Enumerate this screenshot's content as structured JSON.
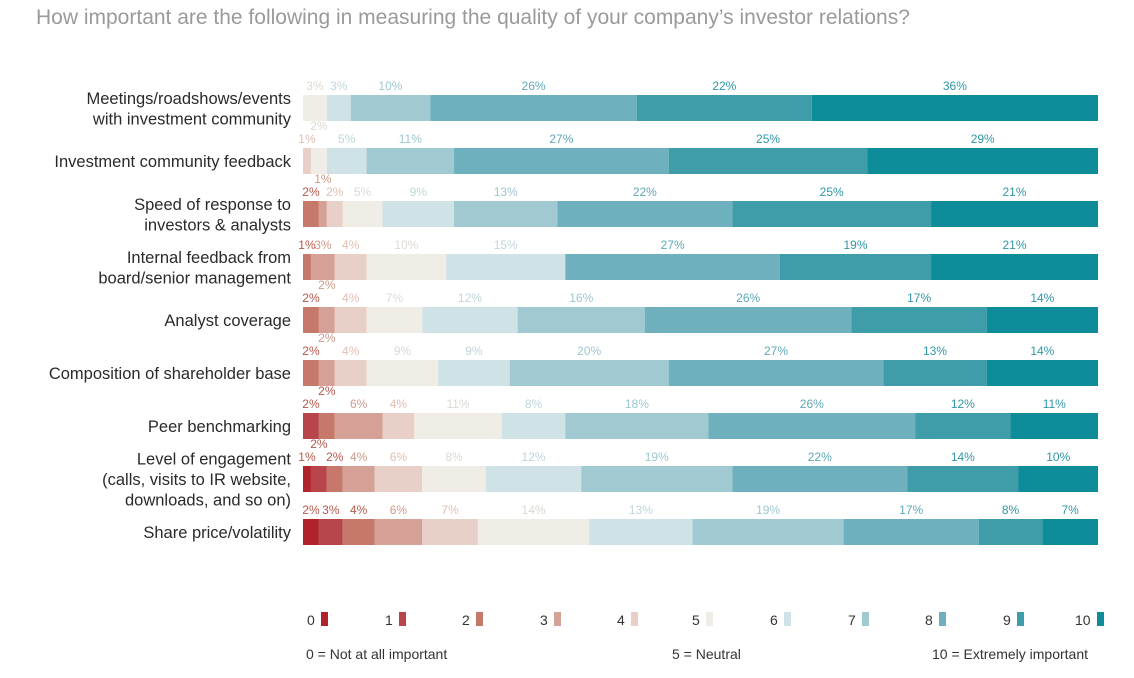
{
  "title": "How important are the following in measuring the quality of your company’s investor relations?",
  "colors": {
    "0": "#b0232b",
    "1": "#b8454a",
    "2": "#c6786a",
    "3": "#d5a095",
    "4": "#e8cfc7",
    "5": "#efede6",
    "6": "#cfe2e5",
    "7": "#a0c9d1",
    "8": "#6eb0bd",
    "9": "#3e9da9",
    "10": "#0e8c99"
  },
  "legend": {
    "scores": [
      "0",
      "1",
      "2",
      "3",
      "4",
      "5",
      "6",
      "7",
      "8",
      "9",
      "10"
    ],
    "left_note": "0 = Not at all important",
    "mid_note": "5 = Neutral",
    "right_note": "10 = Extremely important"
  },
  "chart_data": {
    "type": "bar",
    "stacked": "horizontal-100%",
    "series_names": [
      "0",
      "1",
      "2",
      "3",
      "4",
      "5",
      "6",
      "7",
      "8",
      "9",
      "10"
    ],
    "categories": [
      "Meetings/roadshows/events with investment community",
      "Investment community feedback",
      "Speed of response to investors & analysts",
      "Internal feedback from board/senior management",
      "Analyst coverage",
      "Composition of shareholder base",
      "Peer benchmarking",
      "Level of engagement (calls, visits to IR website, downloads, and so on)",
      "Share price/volatility"
    ],
    "category_lines": [
      [
        "Meetings/roadshows/events",
        "with investment community"
      ],
      [
        "Investment community feedback"
      ],
      [
        "Speed of response to",
        "investors & analysts"
      ],
      [
        "Internal feedback from",
        "board/senior management"
      ],
      [
        "Analyst coverage"
      ],
      [
        "Composition of shareholder base"
      ],
      [
        "Peer benchmarking"
      ],
      [
        "Level of engagement",
        "(calls, visits to IR website,",
        "downloads, and so on)"
      ],
      [
        "Share price/volatility"
      ]
    ],
    "values": [
      [
        0,
        0,
        0,
        0,
        0,
        3,
        3,
        10,
        26,
        22,
        36
      ],
      [
        0,
        0,
        0,
        0,
        1,
        2,
        5,
        11,
        27,
        25,
        29
      ],
      [
        0,
        0,
        2,
        1,
        2,
        5,
        9,
        13,
        22,
        25,
        21
      ],
      [
        0,
        0,
        1,
        3,
        4,
        10,
        15,
        0,
        27,
        19,
        21
      ],
      [
        0,
        0,
        2,
        2,
        4,
        7,
        12,
        16,
        26,
        17,
        14
      ],
      [
        0,
        0,
        2,
        2,
        4,
        9,
        9,
        20,
        27,
        13,
        14
      ],
      [
        0,
        2,
        2,
        6,
        4,
        11,
        8,
        18,
        26,
        12,
        11
      ],
      [
        1,
        2,
        2,
        4,
        6,
        8,
        12,
        19,
        22,
        14,
        10
      ],
      [
        2,
        3,
        4,
        6,
        7,
        14,
        13,
        19,
        17,
        8,
        7
      ]
    ]
  }
}
